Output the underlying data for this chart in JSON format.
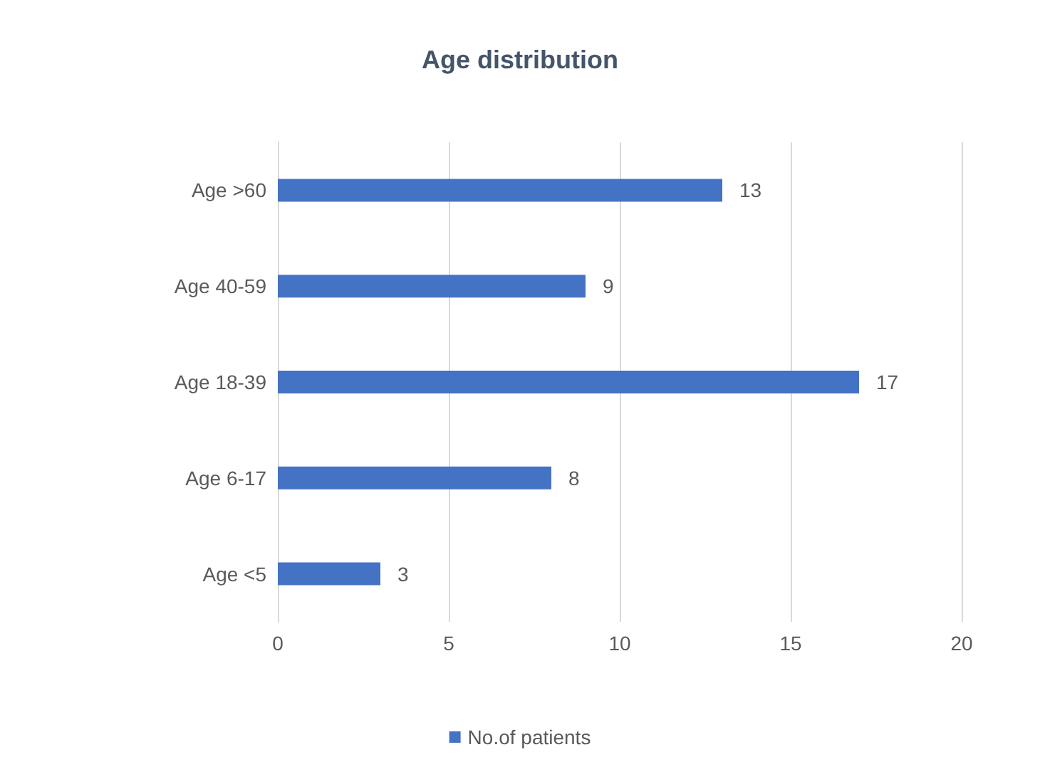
{
  "chart_data": {
    "type": "bar",
    "title": "Age distribution",
    "orientation": "horizontal",
    "categories": [
      "Age >60",
      "Age 40-59",
      "Age 18-39",
      "Age 6-17",
      "Age <5"
    ],
    "series": [
      {
        "name": "No.of patients",
        "color": "#4472c4",
        "values": [
          13,
          9,
          17,
          8,
          3
        ]
      }
    ],
    "xlim": [
      0,
      20
    ],
    "xticks": [
      0,
      5,
      10,
      15,
      20
    ],
    "grid": "x",
    "legend": "bottom",
    "data_labels": true
  }
}
